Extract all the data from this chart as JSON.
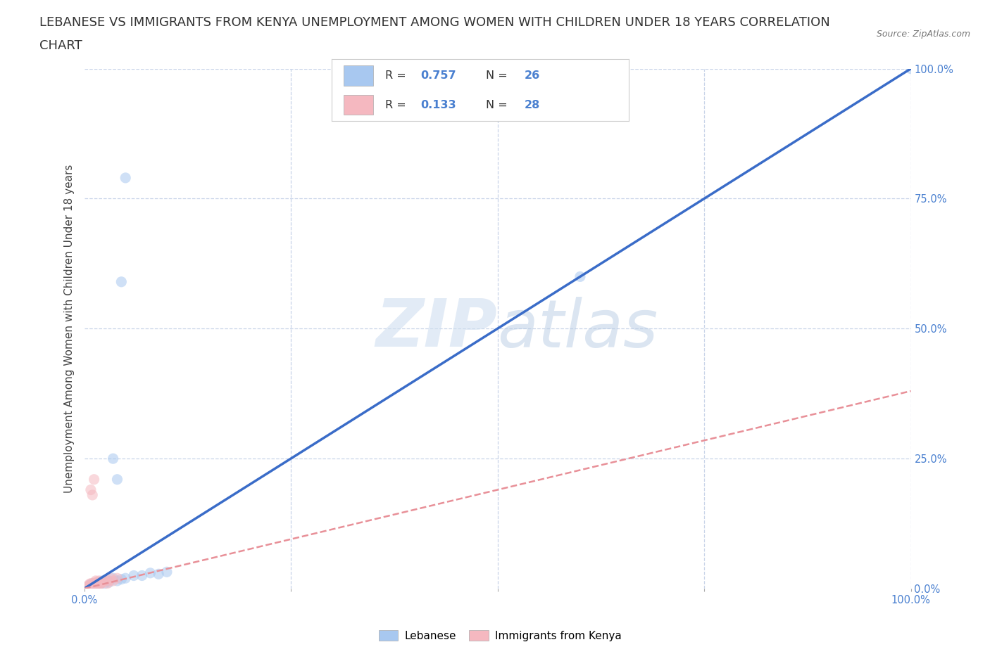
{
  "title_line1": "LEBANESE VS IMMIGRANTS FROM KENYA UNEMPLOYMENT AMONG WOMEN WITH CHILDREN UNDER 18 YEARS CORRELATION",
  "title_line2": "CHART",
  "source": "Source: ZipAtlas.com",
  "ylabel": "Unemployment Among Women with Children Under 18 years",
  "watermark_zip": "ZIP",
  "watermark_atlas": "atlas",
  "legend_blue_R": "0.757",
  "legend_blue_N": "26",
  "legend_pink_R": "0.133",
  "legend_pink_N": "28",
  "legend_blue_label": "Lebanese",
  "legend_pink_label": "Immigrants from Kenya",
  "blue_color": "#a8c8f0",
  "pink_color": "#f5b8c0",
  "blue_line_color": "#3a6cc8",
  "pink_line_color": "#e89098",
  "blue_scatter": [
    [
      0.005,
      0.005
    ],
    [
      0.008,
      0.008
    ],
    [
      0.01,
      0.01
    ],
    [
      0.012,
      0.005
    ],
    [
      0.015,
      0.008
    ],
    [
      0.018,
      0.012
    ],
    [
      0.02,
      0.01
    ],
    [
      0.022,
      0.015
    ],
    [
      0.025,
      0.01
    ],
    [
      0.028,
      0.015
    ],
    [
      0.03,
      0.012
    ],
    [
      0.035,
      0.02
    ],
    [
      0.04,
      0.015
    ],
    [
      0.045,
      0.018
    ],
    [
      0.05,
      0.02
    ],
    [
      0.06,
      0.025
    ],
    [
      0.07,
      0.025
    ],
    [
      0.08,
      0.03
    ],
    [
      0.09,
      0.028
    ],
    [
      0.1,
      0.032
    ],
    [
      0.035,
      0.25
    ],
    [
      0.04,
      0.21
    ],
    [
      0.045,
      0.59
    ],
    [
      0.05,
      0.79
    ],
    [
      0.6,
      0.6
    ],
    [
      1.0,
      1.0
    ]
  ],
  "pink_scatter": [
    [
      0.002,
      0.002
    ],
    [
      0.004,
      0.003
    ],
    [
      0.005,
      0.005
    ],
    [
      0.006,
      0.008
    ],
    [
      0.007,
      0.004
    ],
    [
      0.008,
      0.01
    ],
    [
      0.009,
      0.006
    ],
    [
      0.01,
      0.008
    ],
    [
      0.011,
      0.005
    ],
    [
      0.012,
      0.01
    ],
    [
      0.013,
      0.012
    ],
    [
      0.014,
      0.015
    ],
    [
      0.015,
      0.008
    ],
    [
      0.016,
      0.012
    ],
    [
      0.017,
      0.01
    ],
    [
      0.018,
      0.015
    ],
    [
      0.019,
      0.008
    ],
    [
      0.02,
      0.01
    ],
    [
      0.022,
      0.012
    ],
    [
      0.025,
      0.015
    ],
    [
      0.028,
      0.01
    ],
    [
      0.03,
      0.015
    ],
    [
      0.032,
      0.02
    ],
    [
      0.008,
      0.19
    ],
    [
      0.01,
      0.18
    ],
    [
      0.012,
      0.21
    ],
    [
      0.035,
      0.015
    ],
    [
      0.04,
      0.02
    ]
  ],
  "blue_trendline_x": [
    0.0,
    1.0
  ],
  "blue_trendline_y": [
    0.0,
    1.0
  ],
  "pink_trendline_x": [
    0.0,
    1.0
  ],
  "pink_trendline_y": [
    0.0,
    0.38
  ],
  "xlim": [
    0.0,
    1.0
  ],
  "ylim": [
    0.0,
    1.0
  ],
  "xticks": [
    0.0,
    0.25,
    0.5,
    0.75,
    1.0
  ],
  "yticks": [
    0.0,
    0.25,
    0.5,
    0.75,
    1.0
  ],
  "bg_color": "#ffffff",
  "grid_color": "#c8d4e8",
  "title_fontsize": 13,
  "axis_label_fontsize": 11,
  "tick_fontsize": 10.5,
  "scatter_size": 120,
  "scatter_alpha": 0.55
}
